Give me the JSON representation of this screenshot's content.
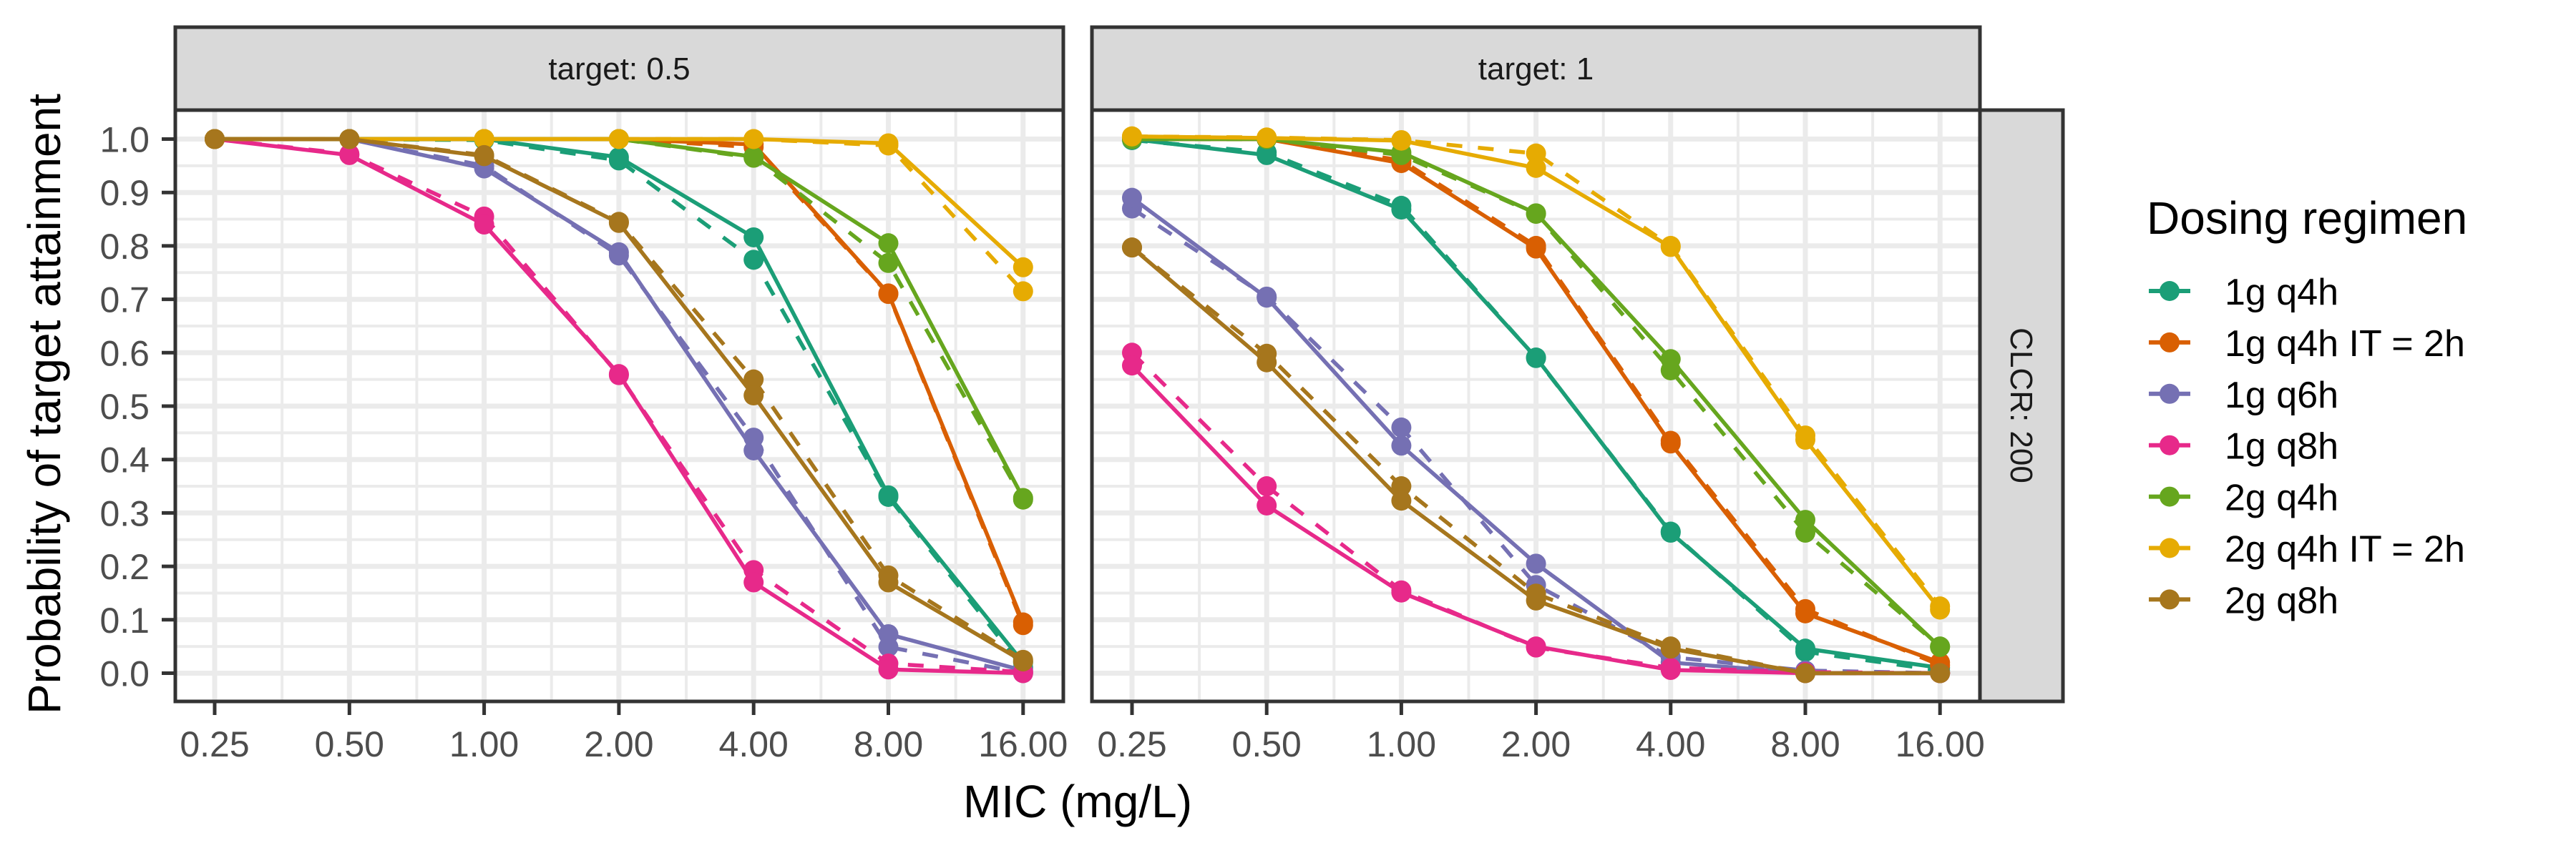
{
  "chart_data": {
    "type": "line",
    "xlabel": "MIC (mg/L)",
    "ylabel": "Probability of target attainment",
    "x": [
      0.25,
      0.5,
      1,
      2,
      4,
      8,
      16
    ],
    "x_tick_labels": [
      "0.25",
      "0.50",
      "1.00",
      "2.00",
      "4.00",
      "8.00",
      "16.00"
    ],
    "x_scale": "log2",
    "y_ticks": [
      0.0,
      0.1,
      0.2,
      0.3,
      0.4,
      0.5,
      0.6,
      0.7,
      0.8,
      0.9,
      1.0
    ],
    "y_tick_labels": [
      "0.0",
      "0.1",
      "0.2",
      "0.3",
      "0.4",
      "0.5",
      "0.6",
      "0.7",
      "0.8",
      "0.9",
      "1.0"
    ],
    "ylim": [
      -0.03,
      1.03
    ],
    "grid": true,
    "row_strip": "CLCR: 200",
    "legend": {
      "title": "Dosing regimen",
      "position": "right",
      "entries": [
        {
          "label": "1g q4h",
          "color": "#1B9E77"
        },
        {
          "label": "1g q4h IT = 2h",
          "color": "#D95F02"
        },
        {
          "label": "1g q6h",
          "color": "#7570B3"
        },
        {
          "label": "1g q8h",
          "color": "#E7298A"
        },
        {
          "label": "2g q4h",
          "color": "#66A61E"
        },
        {
          "label": "2g q4h IT = 2h",
          "color": "#E6AB02"
        },
        {
          "label": "2g q8h",
          "color": "#A6761D"
        }
      ]
    },
    "panels": [
      {
        "strip": "target: 0.5",
        "series": [
          {
            "name": "1g q4h",
            "solid": [
              1.0,
              1.0,
              1.0,
              0.966,
              0.816,
              0.333,
              0.02
            ],
            "dashed": [
              1.0,
              1.0,
              0.998,
              0.96,
              0.774,
              0.33,
              0.01
            ]
          },
          {
            "name": "1g q4h IT = 2h",
            "solid": [
              1.0,
              1.0,
              1.0,
              1.0,
              0.99,
              0.711,
              0.095
            ],
            "dashed": [
              1.0,
              1.0,
              1.0,
              1.0,
              0.985,
              0.71,
              0.09
            ]
          },
          {
            "name": "1g q6h",
            "solid": [
              1.0,
              1.0,
              0.945,
              0.788,
              0.417,
              0.073,
              0.005
            ],
            "dashed": [
              1.0,
              1.0,
              0.95,
              0.782,
              0.441,
              0.049,
              0.0
            ]
          },
          {
            "name": "1g q8h",
            "solid": [
              1.0,
              0.97,
              0.84,
              0.56,
              0.17,
              0.007,
              0.0
            ],
            "dashed": [
              1.0,
              0.972,
              0.855,
              0.558,
              0.193,
              0.018,
              0.002
            ]
          },
          {
            "name": "2g q4h",
            "solid": [
              1.0,
              1.0,
              1.0,
              1.0,
              0.967,
              0.805,
              0.328
            ],
            "dashed": [
              1.0,
              1.0,
              1.0,
              1.0,
              0.965,
              0.768,
              0.325
            ]
          },
          {
            "name": "2g q4h IT = 2h",
            "solid": [
              1.0,
              1.0,
              1.0,
              1.0,
              1.0,
              0.992,
              0.76
            ],
            "dashed": [
              1.0,
              1.0,
              1.0,
              1.0,
              1.0,
              0.988,
              0.715
            ]
          },
          {
            "name": "2g q8h",
            "solid": [
              1.0,
              1.0,
              0.968,
              0.843,
              0.52,
              0.17,
              0.022
            ],
            "dashed": [
              1.0,
              1.0,
              0.97,
              0.845,
              0.55,
              0.183,
              0.025
            ]
          }
        ]
      },
      {
        "strip": "target: 1",
        "series": [
          {
            "name": "1g q4h",
            "solid": [
              1.0,
              0.97,
              0.868,
              0.591,
              0.263,
              0.046,
              0.01
            ],
            "dashed": [
              0.998,
              0.975,
              0.875,
              0.59,
              0.265,
              0.04,
              0.005
            ]
          },
          {
            "name": "1g q4h IT = 2h",
            "solid": [
              1.0,
              1.0,
              0.955,
              0.795,
              0.43,
              0.112,
              0.02
            ],
            "dashed": [
              1.0,
              1.0,
              0.96,
              0.8,
              0.435,
              0.12,
              0.015
            ]
          },
          {
            "name": "1g q6h",
            "solid": [
              0.89,
              0.703,
              0.426,
              0.205,
              0.02,
              0.0,
              0.0
            ],
            "dashed": [
              0.87,
              0.705,
              0.46,
              0.165,
              0.03,
              0.005,
              0.0
            ]
          },
          {
            "name": "1g q8h",
            "solid": [
              0.576,
              0.314,
              0.151,
              0.05,
              0.006,
              0.0,
              0.0
            ],
            "dashed": [
              0.6,
              0.35,
              0.155,
              0.048,
              0.01,
              0.002,
              0.0
            ]
          },
          {
            "name": "2g q4h",
            "solid": [
              1.0,
              1.0,
              0.975,
              0.861,
              0.588,
              0.287,
              0.049
            ],
            "dashed": [
              1.0,
              1.0,
              0.97,
              0.86,
              0.567,
              0.263,
              0.05
            ]
          },
          {
            "name": "2g q4h IT = 2h",
            "solid": [
              1.005,
              1.002,
              0.997,
              0.946,
              0.798,
              0.437,
              0.119
            ],
            "dashed": [
              1.005,
              1.003,
              0.998,
              0.973,
              0.8,
              0.445,
              0.125
            ]
          },
          {
            "name": "2g q8h",
            "solid": [
              0.797,
              0.582,
              0.323,
              0.136,
              0.046,
              0.0,
              0.0
            ],
            "dashed": [
              0.797,
              0.598,
              0.35,
              0.149,
              0.05,
              0.0,
              0.0
            ]
          }
        ]
      }
    ]
  }
}
